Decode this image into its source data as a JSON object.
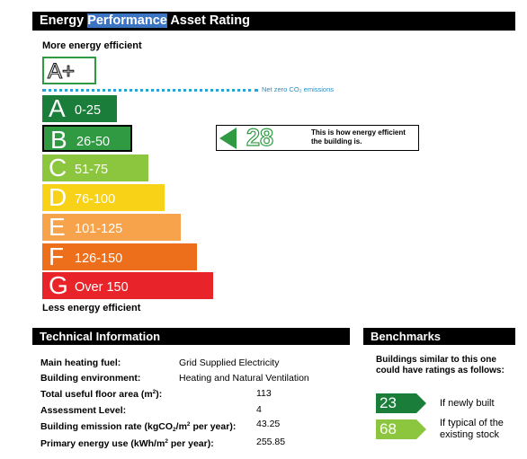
{
  "header": {
    "title_part1": "Energy ",
    "title_part2": "Performance",
    "title_part3": " Asset Rating"
  },
  "scale": {
    "more_label": "More energy efficient",
    "less_label": "Less energy efficient",
    "aplus_label": "A+",
    "netzero_label": "Net zero CO₂ emissions",
    "bands": [
      {
        "letter": "A",
        "range": "0-25",
        "color": "#1a7d3a"
      },
      {
        "letter": "B",
        "range": "26-50",
        "color": "#2f9a42"
      },
      {
        "letter": "C",
        "range": "51-75",
        "color": "#8cc63f"
      },
      {
        "letter": "D",
        "range": "76-100",
        "color": "#f7d217"
      },
      {
        "letter": "E",
        "range": "101-125",
        "color": "#f6a34b"
      },
      {
        "letter": "F",
        "range": "126-150",
        "color": "#ee6f1b"
      },
      {
        "letter": "G",
        "range": "Over 150",
        "color": "#e8242a"
      }
    ],
    "current_band": "B"
  },
  "rating": {
    "value": "28",
    "description_line1": "This is how energy efficient",
    "description_line2": "the building is.",
    "color": "#2f9a42"
  },
  "technical": {
    "title": "Technical Information",
    "heating_fuel": {
      "label": "Main heating fuel:",
      "value": "Grid Supplied Electricity"
    },
    "environment": {
      "label": "Building environment:",
      "value": "Heating and Natural Ventilation"
    },
    "floor_area": {
      "label_pre": "Total useful floor area (m",
      "label_sup": "2",
      "label_post": "):",
      "value": "113"
    },
    "assessment": {
      "label": "Assessment Level:",
      "value": "4"
    },
    "emission": {
      "label_pre": "Building emission rate (kgCO",
      "label_sub": "2",
      "label_mid": "/m",
      "label_sup": "2",
      "label_post": " per year):",
      "value": "43.25"
    },
    "primary": {
      "label_pre": "Primary energy use (kWh/m",
      "label_sup": "2",
      "label_post": " per year):",
      "value": "255.85"
    }
  },
  "benchmarks": {
    "title": "Benchmarks",
    "description": "Buildings similar to this one could have ratings as follows:",
    "new": {
      "value": "23",
      "label": "If newly built",
      "color": "#1a7d3a"
    },
    "typical": {
      "value": "68",
      "label": "If typical of the existing stock",
      "color": "#8cc63f"
    }
  }
}
